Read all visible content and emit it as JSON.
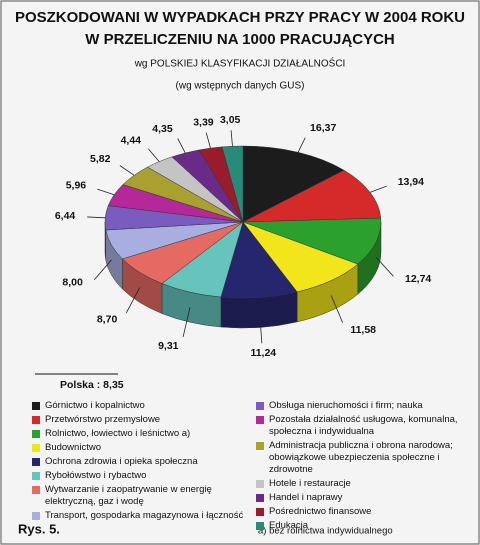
{
  "chart_data": {
    "type": "pie",
    "title": [
      "POSZKODOWANI  W   WYPADKACH  PRZY PRACY  W 2004 ROKU",
      "W PRZELICZENIU NA 1000 PRACUJĄCYCH"
    ],
    "subtitle": [
      "wg  POLSKIEJ KLASYFIKACJI DZIAŁALNOŚCI",
      "(wg wstępnych danych GUS)"
    ],
    "categories": [
      "Górnictwo i kopalnictwo",
      "Przetwórstwo przemysłowe",
      "Rolnictwo, łowiectwo i leśnictwo a)",
      "Budownictwo",
      "Ochrona zdrowia i opieka społeczna",
      "Rybołówstwo i rybactwo",
      "Wytwarzanie i zaopatrywanie w energię elektryczną, gaz i wodę",
      "Transport, gospodarka magazynowa i łączność",
      "Obsługa nieruchomości i firm; nauka",
      "Pozostała działalność usługowa, komunalna, społeczna i indywidualna",
      "Administracja publiczna i obrona narodowa; obowiązkowe ubezpieczenia społeczne i zdrowotne",
      "Hotele i restauracje",
      "Handel i naprawy",
      "Pośrednictwo finansowe",
      "Edukacja"
    ],
    "values": [
      16.37,
      13.94,
      12.74,
      11.58,
      11.24,
      9.31,
      8.7,
      8.0,
      6.44,
      5.96,
      5.82,
      4.44,
      4.35,
      3.39,
      3.05
    ],
    "value_labels": [
      "16,37",
      "13,94",
      "12,74",
      "11,58",
      "11,24",
      "9,31",
      "8,70",
      "8,00",
      "6,44",
      "5,96",
      "5,82",
      "4,44",
      "4,35",
      "3,39",
      "3,05"
    ],
    "colors": [
      "#1c1c1c",
      "#d42a2a",
      "#2ca02c",
      "#f2e51a",
      "#26266e",
      "#66c4bc",
      "#e66a64",
      "#a8aee0",
      "#7a5cc0",
      "#b4289a",
      "#a8a030",
      "#c4c4c4",
      "#6a2a88",
      "#9a1c2a",
      "#2a8a7a"
    ],
    "annotations": [
      "Polska : 8,35",
      "Rys. 5.",
      "a) bez rolnictwa indywidualnego"
    ]
  }
}
